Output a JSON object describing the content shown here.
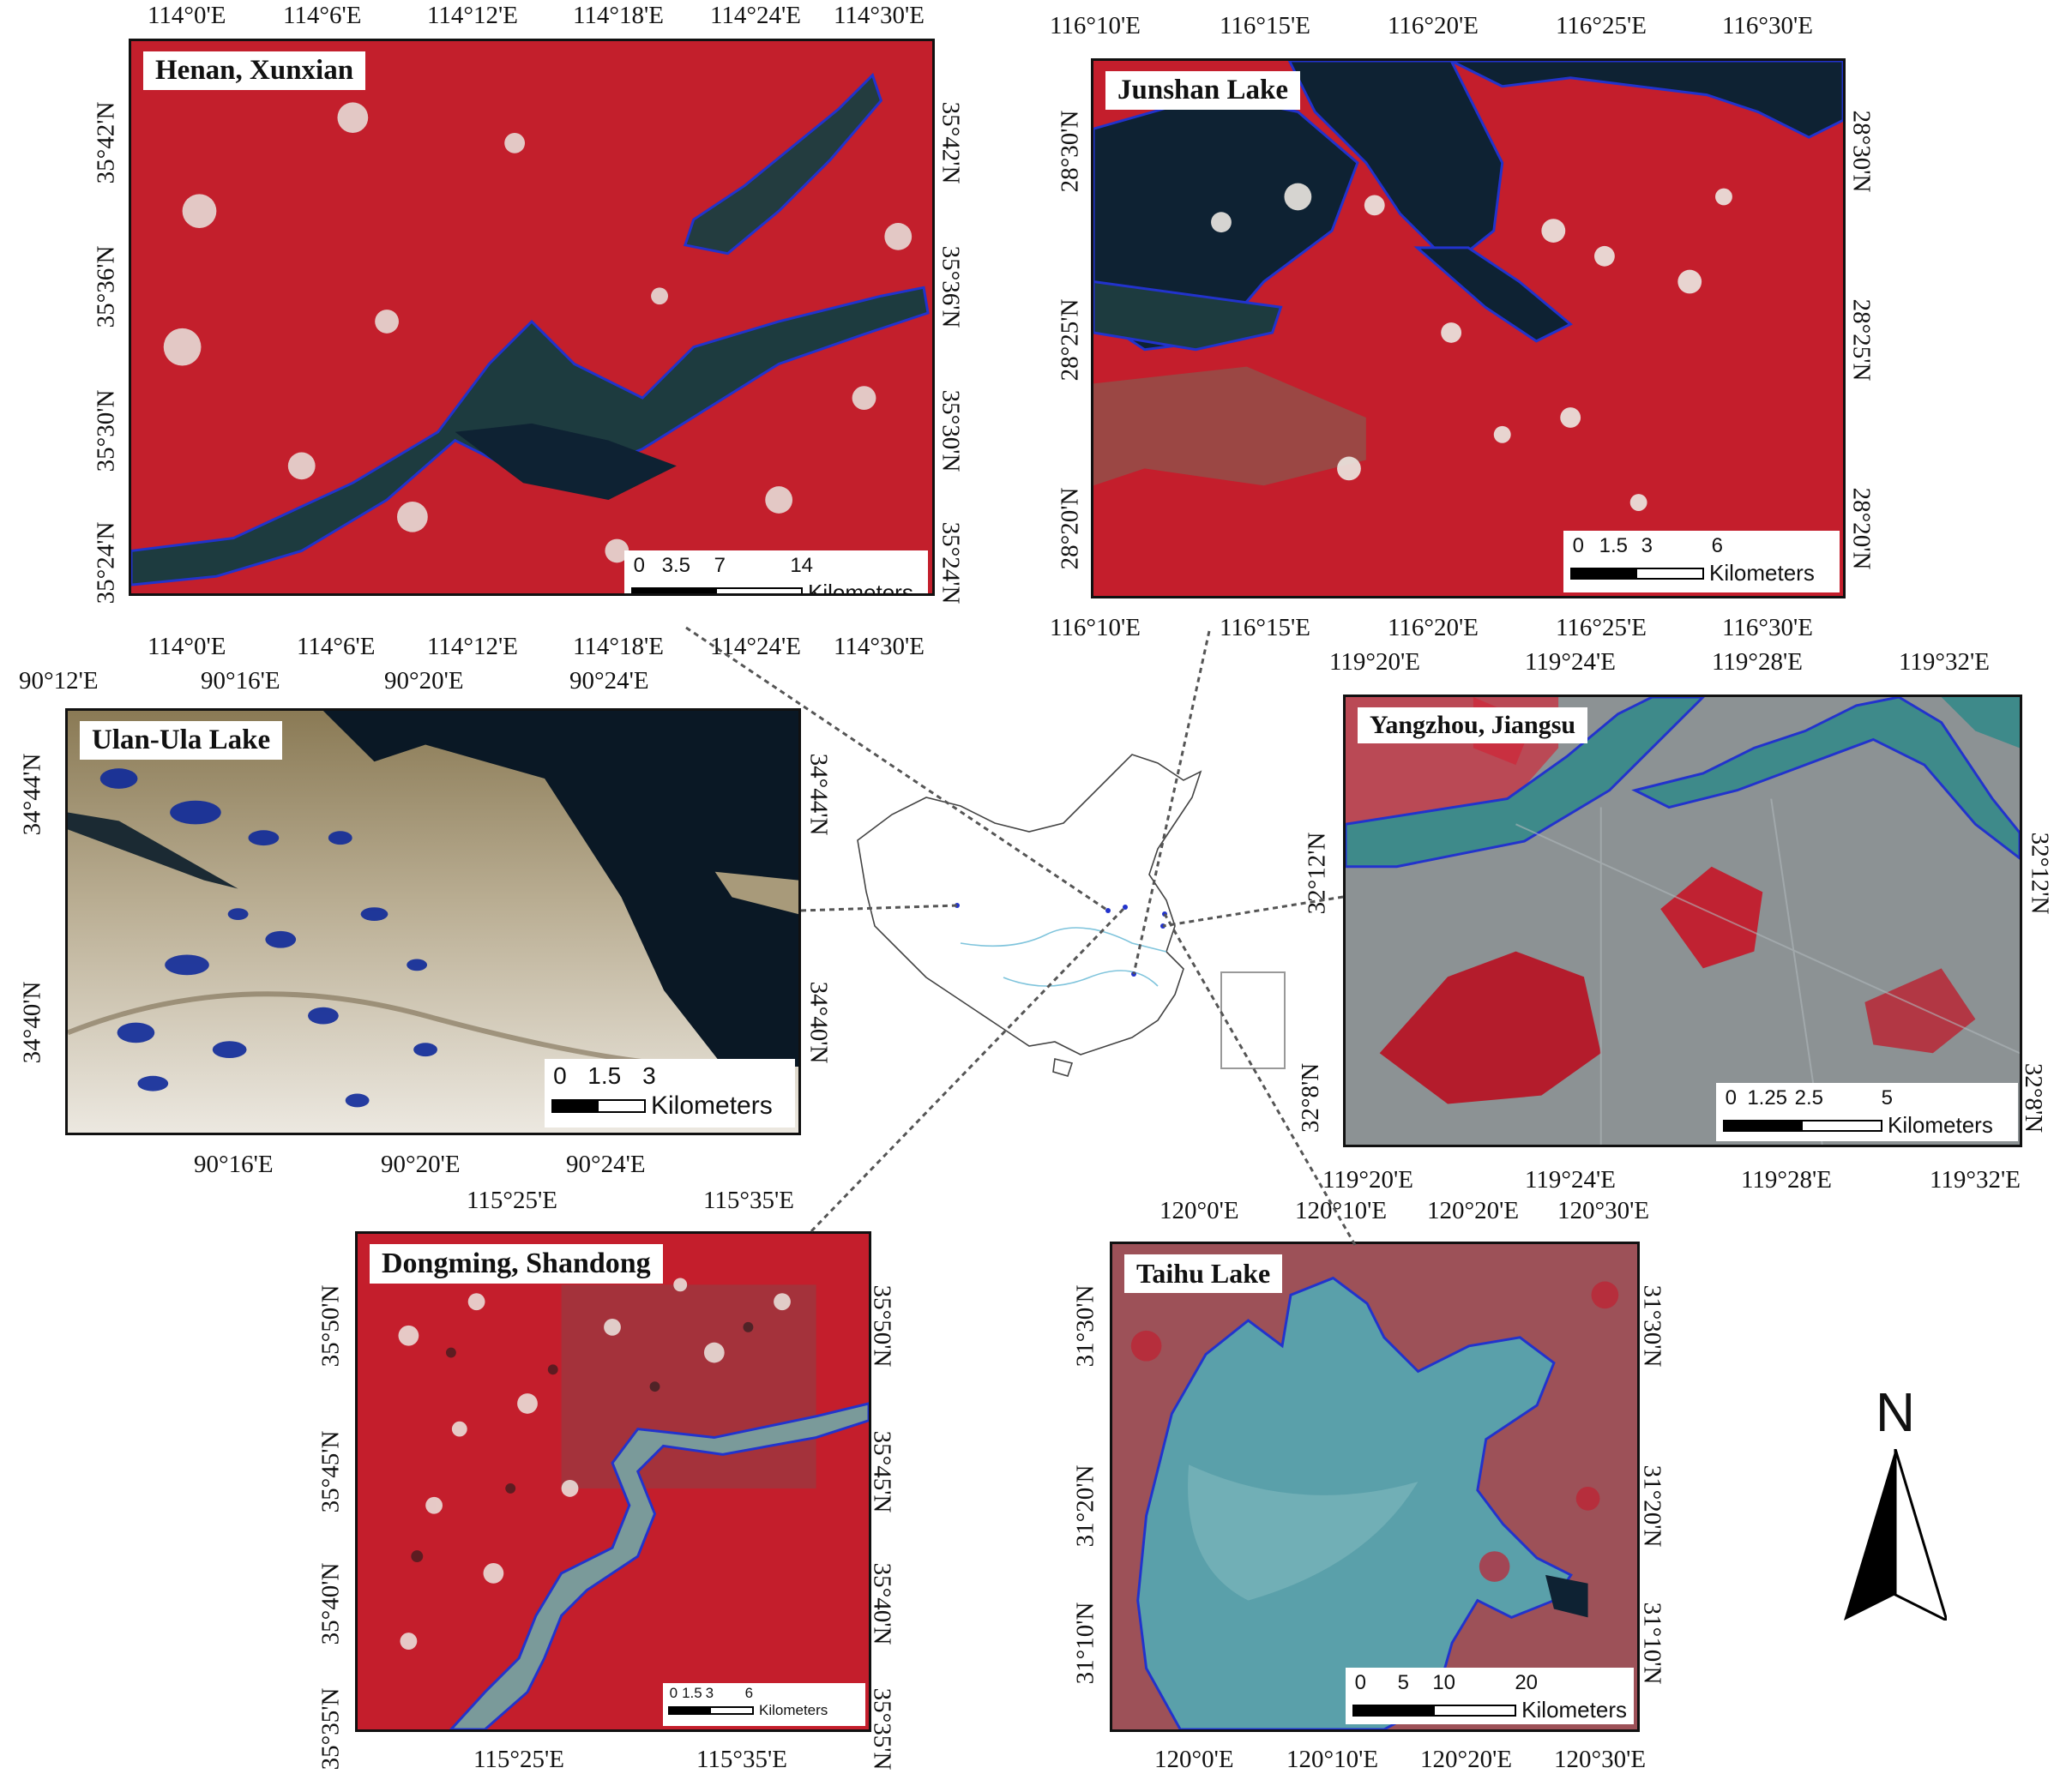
{
  "panels": {
    "henan": {
      "title": "Henan, Xunxian",
      "top_ticks": [
        "114°0'E",
        "114°6'E",
        "114°12'E",
        "114°18'E",
        "114°24'E",
        "114°30'E"
      ],
      "bottom_ticks": [
        "114°0'E",
        "114°6'E",
        "114°12'E",
        "114°18'E",
        "114°24'E",
        "114°30'E"
      ],
      "left_ticks": [
        "35°42'N",
        "35°36'N",
        "35°30'N",
        "35°24'N"
      ],
      "right_ticks": [
        "35°42'N",
        "35°36'N",
        "35°30'N",
        "35°24'N"
      ],
      "scale_labels": [
        "0",
        "3.5",
        "7",
        "14"
      ],
      "scale_unit": "Kilometers"
    },
    "junshan": {
      "title": "Junshan Lake",
      "top_ticks": [
        "116°10'E",
        "116°15'E",
        "116°20'E",
        "116°25'E",
        "116°30'E"
      ],
      "bottom_ticks": [
        "116°10'E",
        "116°15'E",
        "116°20'E",
        "116°25'E",
        "116°30'E"
      ],
      "left_ticks": [
        "28°30'N",
        "28°25'N",
        "28°20'N"
      ],
      "right_ticks": [
        "28°30'N",
        "28°25'N",
        "28°20'N"
      ],
      "scale_labels": [
        "0",
        "1.5",
        "3",
        "6"
      ],
      "scale_unit": "Kilometers"
    },
    "ulan": {
      "title": "Ulan-Ula Lake",
      "top_ticks": [
        "90°12'E",
        "90°16'E",
        "90°20'E",
        "90°24'E"
      ],
      "bottom_ticks": [
        "90°16'E",
        "90°20'E",
        "90°24'E"
      ],
      "left_ticks": [
        "34°44'N",
        "34°40'N"
      ],
      "right_ticks": [
        "34°44'N",
        "34°40'N"
      ],
      "scale_labels": [
        "0",
        "1.5",
        "3"
      ],
      "scale_unit": "Kilometers"
    },
    "yangzhou": {
      "title": "Yangzhou, Jiangsu",
      "top_ticks": [
        "119°20'E",
        "119°24'E",
        "119°28'E",
        "119°32'E"
      ],
      "bottom_ticks": [
        "119°20'E",
        "119°24'E",
        "119°28'E",
        "119°32'E"
      ],
      "left_ticks": [
        "32°12'N",
        "32°8'N"
      ],
      "right_ticks": [
        "32°12'N",
        "32°8'N"
      ],
      "scale_labels": [
        "0",
        "1.25",
        "2.5",
        "5"
      ],
      "scale_unit": "Kilometers"
    },
    "dongming": {
      "title": "Dongming, Shandong",
      "top_ticks": [
        "115°25'E",
        "115°35'E"
      ],
      "bottom_ticks": [
        "115°25'E",
        "115°35'E"
      ],
      "left_ticks": [
        "35°50'N",
        "35°45'N",
        "35°40'N",
        "35°35'N"
      ],
      "right_ticks": [
        "35°50'N",
        "35°45'N",
        "35°40'N",
        "35°35'N"
      ],
      "scale_labels": [
        "0",
        "1.5",
        "3",
        "6"
      ],
      "scale_unit": "Kilometers"
    },
    "taihu": {
      "title": "Taihu Lake",
      "top_ticks": [
        "120°0'E",
        "120°10'E",
        "120°20'E",
        "120°30'E"
      ],
      "bottom_ticks": [
        "120°0'E",
        "120°10'E",
        "120°20'E",
        "120°30'E"
      ],
      "left_ticks": [
        "31°30'N",
        "31°20'N",
        "31°10'N"
      ],
      "right_ticks": [
        "31°30'N",
        "31°20'N",
        "31°10'N"
      ],
      "scale_labels": [
        "0",
        "5",
        "10",
        "20"
      ],
      "scale_unit": "Kilometers"
    }
  },
  "north_label": "N",
  "colors": {
    "farmland": "#c8202e",
    "water_dark": "#0e2233",
    "water_teal": "#3e8a8a",
    "taihu_water": "#5aa0aa",
    "outline": "#2233cc",
    "snow": "#e8e4dc"
  }
}
